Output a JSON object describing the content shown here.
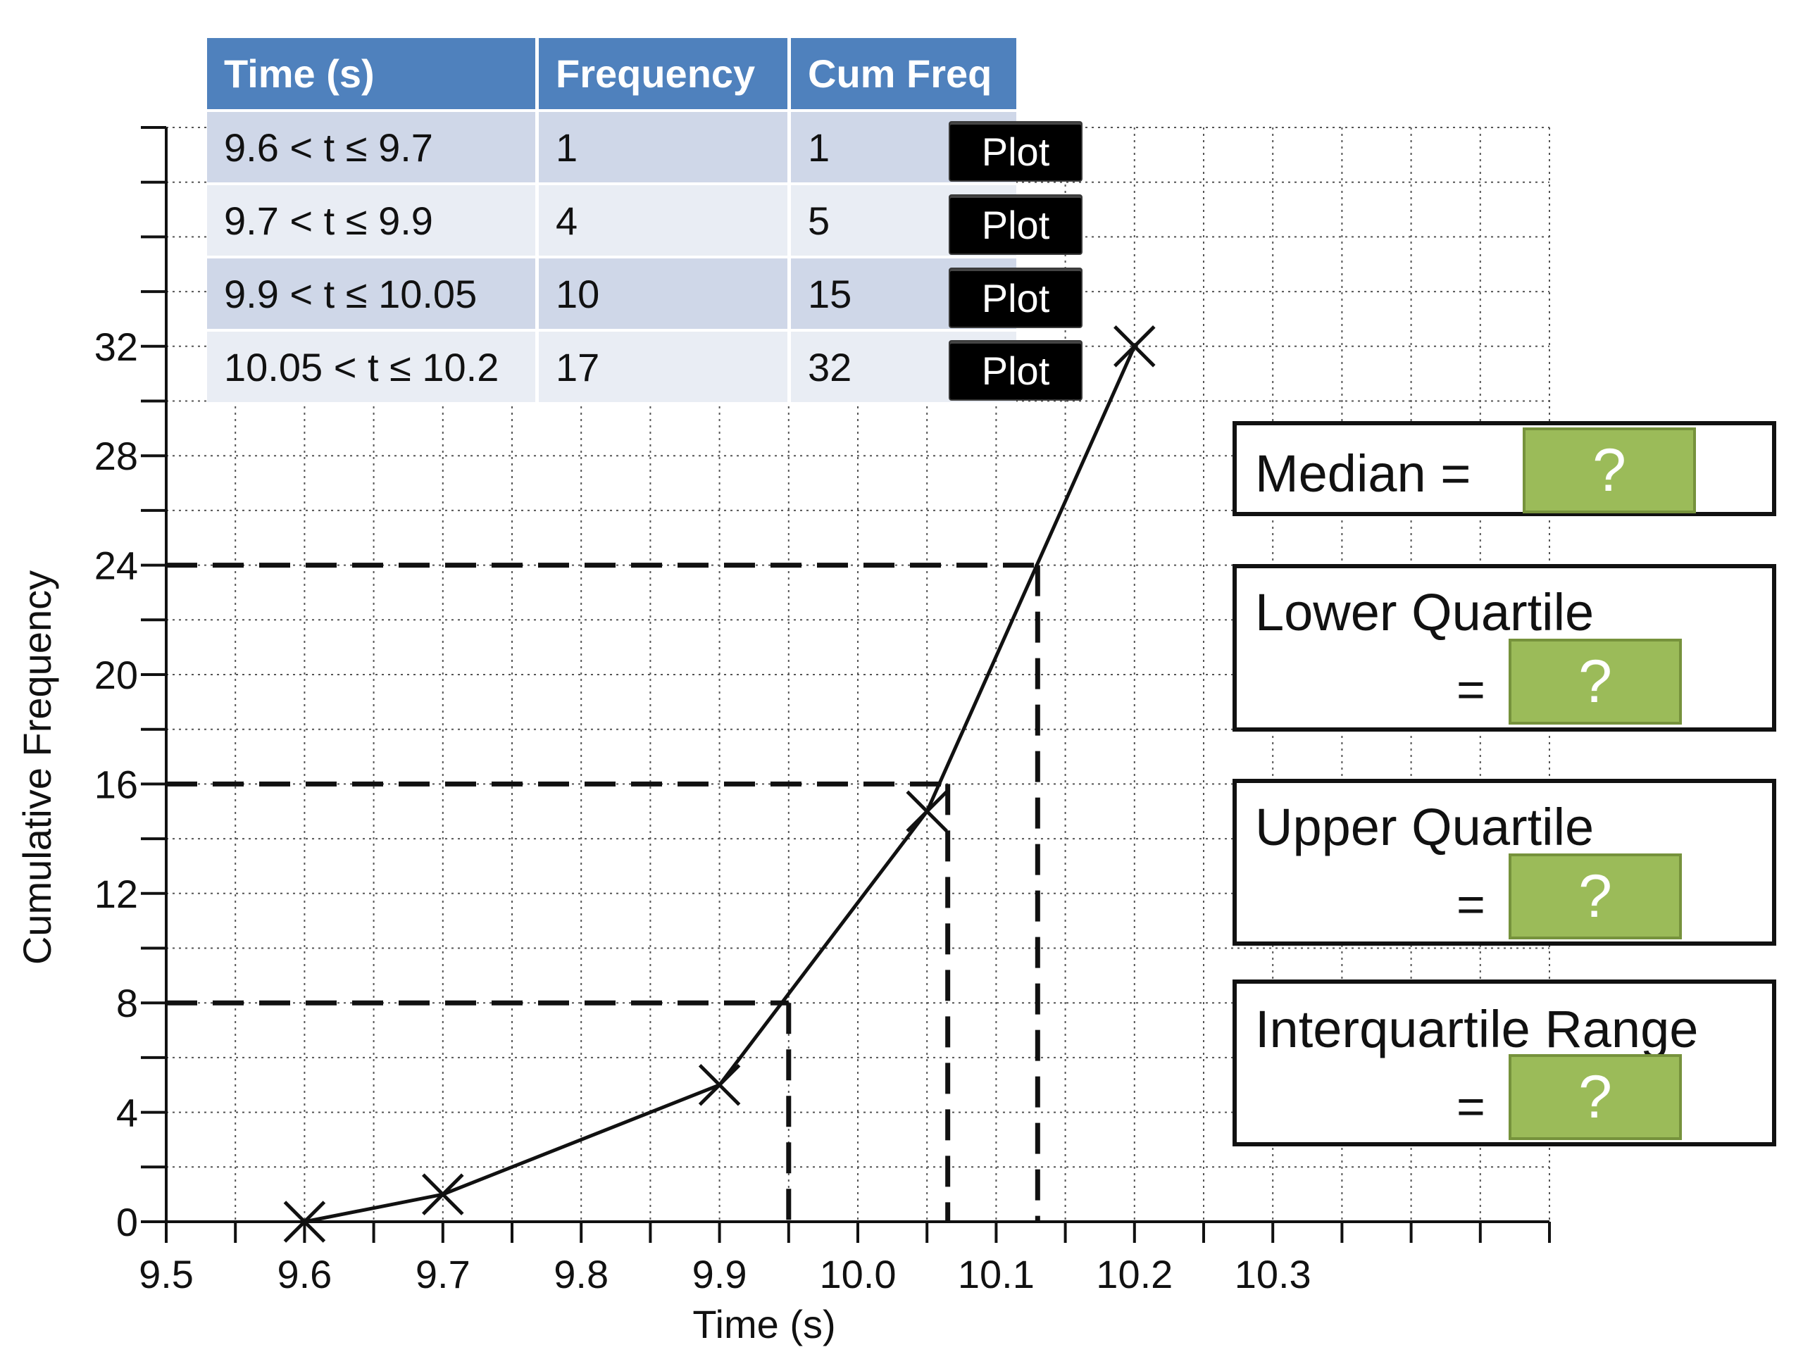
{
  "table": {
    "headers": [
      "Time (s)",
      "Frequency",
      "Cum Freq"
    ],
    "rows": [
      {
        "interval": "9.6 < t ≤ 9.7",
        "frequency": "1",
        "cum_freq": "1"
      },
      {
        "interval": "9.7 < t ≤ 9.9",
        "frequency": "4",
        "cum_freq": "5"
      },
      {
        "interval": "9.9 < t ≤ 10.05",
        "frequency": "10",
        "cum_freq": "15"
      },
      {
        "interval": "10.05 < t ≤ 10.2",
        "frequency": "17",
        "cum_freq": "32"
      }
    ],
    "plot_label": "Plot"
  },
  "answers": {
    "median_label": "Median =",
    "lower_quartile_label": "Lower Quartile",
    "upper_quartile_label": "Upper Quartile",
    "iqr_label": "Interquartile Range",
    "equals": "=",
    "placeholder": "?"
  },
  "chart_data": {
    "type": "line",
    "xlabel": "Time (s)",
    "ylabel": "Cumulative Frequency",
    "xlim": [
      9.5,
      10.5
    ],
    "ylim": [
      0,
      40
    ],
    "x_ticks": [
      9.5,
      9.6,
      9.7,
      9.8,
      9.9,
      10.0,
      10.1,
      10.2,
      10.3
    ],
    "x_tick_labels": [
      "9.5",
      "9.6",
      "9.7",
      "9.8",
      "9.9",
      "10.0",
      "10.1",
      "10.2",
      "10.3"
    ],
    "y_ticks": [
      0,
      4,
      8,
      12,
      16,
      20,
      24,
      28,
      32
    ],
    "y_tick_labels": [
      "0",
      "4",
      "8",
      "12",
      "16",
      "20",
      "24",
      "28",
      "32"
    ],
    "grid": true,
    "grid_style": "dotted",
    "series": [
      {
        "x": [
          9.6,
          9.7,
          9.9,
          10.05,
          10.2
        ],
        "values": [
          0,
          1,
          5,
          15,
          32
        ],
        "marker": "x",
        "color": "#111111"
      }
    ],
    "reading_lines": [
      {
        "y": 8,
        "x": 9.95
      },
      {
        "y": 16,
        "x": 10.065
      },
      {
        "y": 24,
        "x": 10.13
      }
    ]
  }
}
